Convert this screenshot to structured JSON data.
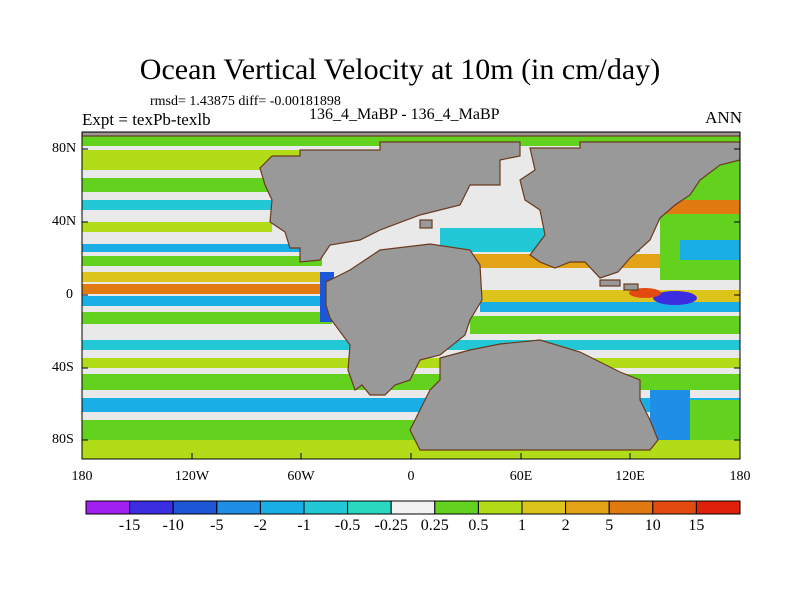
{
  "title": "Ocean Vertical Velocity at 10m (in cm/day)",
  "stats": "rmsd= 1.43875 diff= -0.00181898",
  "experiment": "Expt = texPb-texlb",
  "case": "136_4_MaBP - 136_4_MaBP",
  "season": "ANN",
  "axes": {
    "lat_ticks": [
      "80N",
      "40N",
      "0",
      "40S",
      "80S"
    ],
    "lon_ticks": [
      "180",
      "120W",
      "60W",
      "0",
      "60E",
      "120E",
      "180"
    ]
  },
  "colorbar": {
    "labels": [
      "-15",
      "-10",
      "-5",
      "-2",
      "-1",
      "-0.5",
      "-0.25",
      "0.25",
      "0.5",
      "1",
      "2",
      "5",
      "10",
      "15"
    ],
    "colors": [
      "#a020f0",
      "#3a2ee0",
      "#1e56d8",
      "#1e8ee6",
      "#1aaee6",
      "#22c8d6",
      "#2ad8c0",
      "#f2f2f2",
      "#62d21e",
      "#b2dc18",
      "#dcc41a",
      "#e2a416",
      "#e27a12",
      "#e24a10",
      "#e02008"
    ]
  },
  "colors": {
    "land": "#999999",
    "ocean_base": "#e9e9e9"
  }
}
